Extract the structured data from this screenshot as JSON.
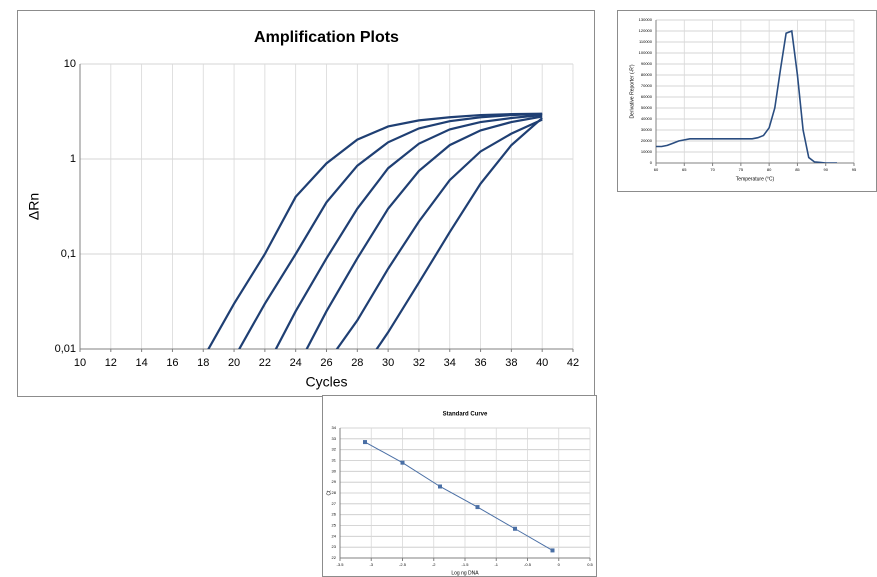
{
  "chart_data": [
    {
      "type": "line",
      "title": "Amplification Plots",
      "x_label": "Cycles",
      "y_label": "ΔRn",
      "x": [
        18,
        20,
        22,
        24,
        26,
        28,
        30,
        32,
        34,
        36,
        38,
        40
      ],
      "series": [
        {
          "color": "#1f3f73",
          "values": [
            0.008,
            0.03,
            0.1,
            0.4,
            0.9,
            1.6,
            2.2,
            2.55,
            2.75,
            2.9,
            2.97,
            3.0
          ]
        },
        {
          "color": "#1f3f73",
          "values": [
            null,
            0.008,
            0.03,
            0.1,
            0.35,
            0.85,
            1.5,
            2.1,
            2.5,
            2.75,
            2.9,
            2.98
          ]
        },
        {
          "color": "#1f3f73",
          "values": [
            null,
            null,
            0.006,
            0.025,
            0.09,
            0.3,
            0.8,
            1.45,
            2.05,
            2.45,
            2.7,
            2.9
          ]
        },
        {
          "color": "#1f3f73",
          "values": [
            null,
            null,
            null,
            0.006,
            0.025,
            0.09,
            0.3,
            0.75,
            1.4,
            2.0,
            2.45,
            2.8
          ]
        },
        {
          "color": "#1f3f73",
          "values": [
            null,
            null,
            null,
            null,
            0.007,
            0.02,
            0.07,
            0.22,
            0.6,
            1.2,
            1.85,
            2.6
          ]
        },
        {
          "color": "#1f3f73",
          "values": [
            null,
            null,
            null,
            null,
            null,
            0.005,
            0.015,
            0.05,
            0.17,
            0.55,
            1.4,
            2.7
          ]
        }
      ],
      "xlim": [
        10,
        42
      ],
      "xticks": [
        10,
        12,
        14,
        16,
        18,
        20,
        22,
        24,
        26,
        28,
        30,
        32,
        34,
        36,
        38,
        40,
        42
      ],
      "ylim": [
        0.01,
        10
      ],
      "log_y": true,
      "yticks": [
        {
          "value": 0.01,
          "label": "0,01"
        },
        {
          "value": 0.1,
          "label": "0,1"
        },
        1,
        10
      ],
      "grid": true
    },
    {
      "type": "line",
      "x_label": "Temperature (°C)",
      "y_label": "Derivative Reporter (-R')",
      "x": [
        60,
        61,
        62,
        63,
        64,
        65,
        66,
        67,
        68,
        69,
        70,
        71,
        72,
        73,
        74,
        75,
        76,
        77,
        78,
        79,
        80,
        81,
        82,
        83,
        84,
        85,
        86,
        87,
        88,
        89,
        90,
        91,
        92
      ],
      "series": [
        {
          "color": "#2a4d80",
          "values": [
            15000,
            15000,
            16000,
            18000,
            20000,
            21000,
            22000,
            22000,
            22000,
            22000,
            22000,
            22000,
            22000,
            22000,
            22000,
            22000,
            22000,
            22000,
            23000,
            25000,
            32000,
            50000,
            85000,
            118000,
            120000,
            80000,
            30000,
            5000,
            1000,
            500,
            0,
            0,
            0
          ]
        }
      ],
      "xlim": [
        60,
        95
      ],
      "xticks": [
        60,
        65,
        70,
        75,
        80,
        85,
        90,
        95
      ],
      "ylim": [
        0,
        130000
      ],
      "yticks": [
        0,
        10000,
        20000,
        30000,
        40000,
        50000,
        60000,
        70000,
        80000,
        90000,
        100000,
        110000,
        120000,
        130000
      ],
      "grid": true
    },
    {
      "type": "line",
      "title": "Standard Curve",
      "x_label": "Log ng DNA",
      "y_label": "Ct",
      "markers": true,
      "x": [
        -3.1,
        -2.5,
        -1.9,
        -1.3,
        -0.7,
        -0.1
      ],
      "series": [
        {
          "color": "#4a6fa5",
          "values": [
            32.7,
            30.8,
            28.6,
            26.7,
            24.7,
            22.7
          ]
        }
      ],
      "xlim": [
        -3.5,
        0.5
      ],
      "xticks": [
        -3.5,
        -3,
        -2.5,
        -2,
        -1.5,
        -1,
        -0.5,
        0,
        0.5
      ],
      "ylim": [
        22,
        34
      ],
      "yticks": [
        22,
        23,
        24,
        25,
        26,
        27,
        28,
        29,
        30,
        31,
        32,
        33,
        34
      ],
      "grid": true
    }
  ]
}
